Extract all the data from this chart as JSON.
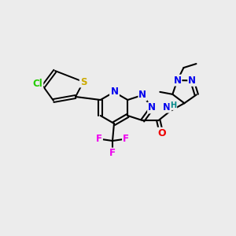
{
  "bg_color": "#ececec",
  "atom_colors": {
    "N": "#0000ee",
    "O": "#ee0000",
    "S": "#ccaa00",
    "Cl": "#22cc00",
    "F": "#ee00ee",
    "H": "#008888",
    "C": "#000000"
  },
  "font_size": 8.5,
  "fig_size": [
    3.0,
    3.0
  ],
  "dpi": 100
}
